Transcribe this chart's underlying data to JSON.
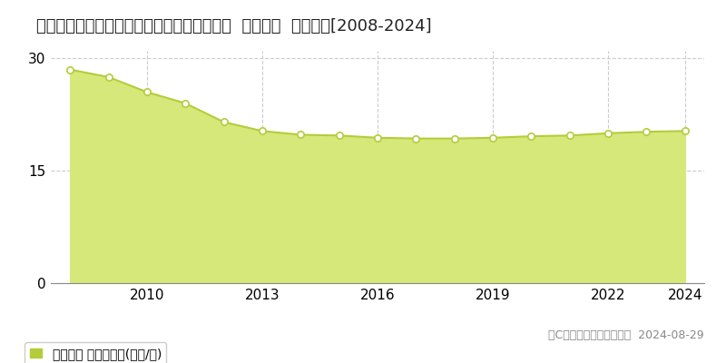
{
  "title": "埼玉県比企郡滑川町月の輪２丁目１４番３外  地価公示  地価推移[2008-2024]",
  "years": [
    2008,
    2009,
    2010,
    2011,
    2012,
    2013,
    2014,
    2015,
    2016,
    2017,
    2018,
    2019,
    2020,
    2021,
    2022,
    2023,
    2024
  ],
  "values": [
    28.5,
    27.5,
    25.5,
    24.0,
    21.5,
    20.3,
    19.8,
    19.7,
    19.4,
    19.3,
    19.3,
    19.4,
    19.6,
    19.7,
    20.0,
    20.2,
    20.3
  ],
  "line_color": "#b5cc3a",
  "fill_color": "#d6e87a",
  "marker_face_color": "#ffffff",
  "marker_edge_color": "#b5cc3a",
  "background_color": "#ffffff",
  "grid_color": "#cccccc",
  "yticks": [
    0,
    15,
    30
  ],
  "ylim": [
    0,
    31
  ],
  "xlim": [
    2007.5,
    2024.5
  ],
  "xticks": [
    2010,
    2013,
    2016,
    2019,
    2022,
    2024
  ],
  "legend_label": "地価公示 平均坂単価(万円/坐)",
  "copyright_text": "（C）土地価格ドットコム  2024-08-29",
  "title_fontsize": 13,
  "axis_fontsize": 11,
  "legend_fontsize": 10,
  "copyright_fontsize": 9
}
